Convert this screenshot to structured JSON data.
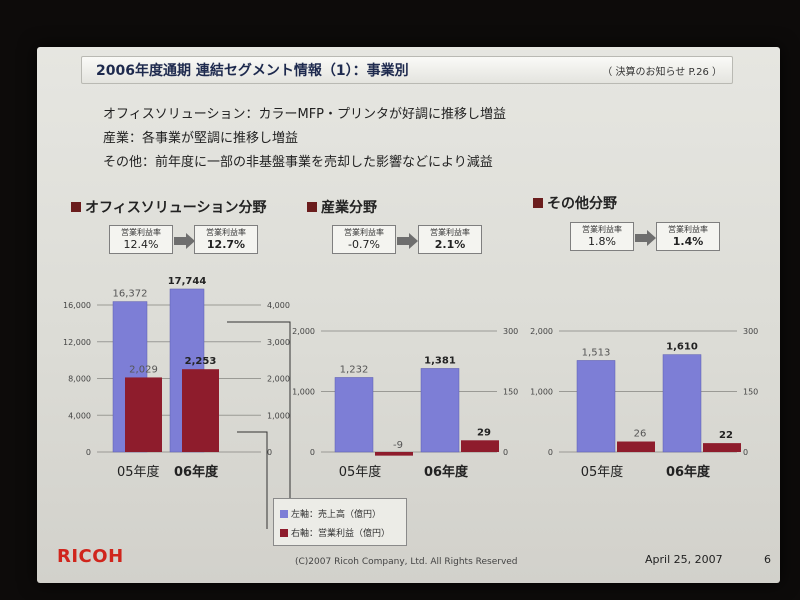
{
  "slide": {
    "title": "2006年度通期 連結セグメント情報（1）：事業別",
    "source_note": "（ 決算のお知らせ P.26 ）",
    "bullets": [
      "オフィスソリューション：カラーMFP・プリンタが好調に推移し増益",
      "産業：各事業が堅調に推移し増益",
      "その他：前年度に一部の非基盤事業を売却した影響などにより減益"
    ],
    "legend": {
      "left_axis": "左軸：売上高（億円）",
      "right_axis": "右軸：営業利益（億円）"
    },
    "logo": "RICOH",
    "copyright": "(C)2007 Ricoh Company, Ltd. All Rights Reserved",
    "date": "April 25, 2007",
    "page_number": "6"
  },
  "colors": {
    "sales_bar": "#7d7ed6",
    "profit_bar": "#8e1c2c",
    "section_marker": "#6b1d1d",
    "logo": "#d0251c"
  },
  "chart_data": [
    {
      "type": "bar",
      "section_title": "オフィスソリューション分野",
      "margin_label": "営業利益率",
      "margin_from": "12.4%",
      "margin_to": "12.7%",
      "categories": [
        "05年度",
        "06年度"
      ],
      "series": [
        {
          "name": "売上高",
          "axis": "left",
          "values": [
            16372,
            17744
          ],
          "labels": [
            "16,372",
            "17,744"
          ]
        },
        {
          "name": "営業利益",
          "axis": "right",
          "values": [
            2029,
            2253
          ],
          "labels": [
            "2,029",
            "2,253"
          ]
        }
      ],
      "left_axis": {
        "min": 0,
        "max": 16000,
        "ticks": [
          "0",
          "4,000",
          "8,000",
          "12,000",
          "16,000"
        ]
      },
      "right_axis": {
        "min": 0,
        "max": 4000,
        "ticks": [
          "0",
          "1,000",
          "2,000",
          "3,000",
          "4,000"
        ]
      }
    },
    {
      "type": "bar",
      "section_title": "産業分野",
      "margin_label": "営業利益率",
      "margin_from": "-0.7%",
      "margin_to": "2.1%",
      "categories": [
        "05年度",
        "06年度"
      ],
      "series": [
        {
          "name": "売上高",
          "axis": "left",
          "values": [
            1232,
            1381
          ],
          "labels": [
            "1,232",
            "1,381"
          ]
        },
        {
          "name": "営業利益",
          "axis": "right",
          "values": [
            -9,
            29
          ],
          "labels": [
            "-9",
            "29"
          ]
        }
      ],
      "left_axis": {
        "min": 0,
        "max": 2000,
        "ticks": [
          "0",
          "1,000",
          "2,000"
        ]
      },
      "right_axis": {
        "min": 0,
        "max": 300,
        "ticks": [
          "0",
          "150",
          "300"
        ]
      }
    },
    {
      "type": "bar",
      "section_title": "その他分野",
      "margin_label": "営業利益率",
      "margin_from": "1.8%",
      "margin_to": "1.4%",
      "categories": [
        "05年度",
        "06年度"
      ],
      "series": [
        {
          "name": "売上高",
          "axis": "left",
          "values": [
            1513,
            1610
          ],
          "labels": [
            "1,513",
            "1,610"
          ]
        },
        {
          "name": "営業利益",
          "axis": "right",
          "values": [
            26,
            22
          ],
          "labels": [
            "26",
            "22"
          ]
        }
      ],
      "left_axis": {
        "min": 0,
        "max": 2000,
        "ticks": [
          "0",
          "1,000",
          "2,000"
        ]
      },
      "right_axis": {
        "min": 0,
        "max": 300,
        "ticks": [
          "0",
          "150",
          "300"
        ]
      }
    }
  ]
}
